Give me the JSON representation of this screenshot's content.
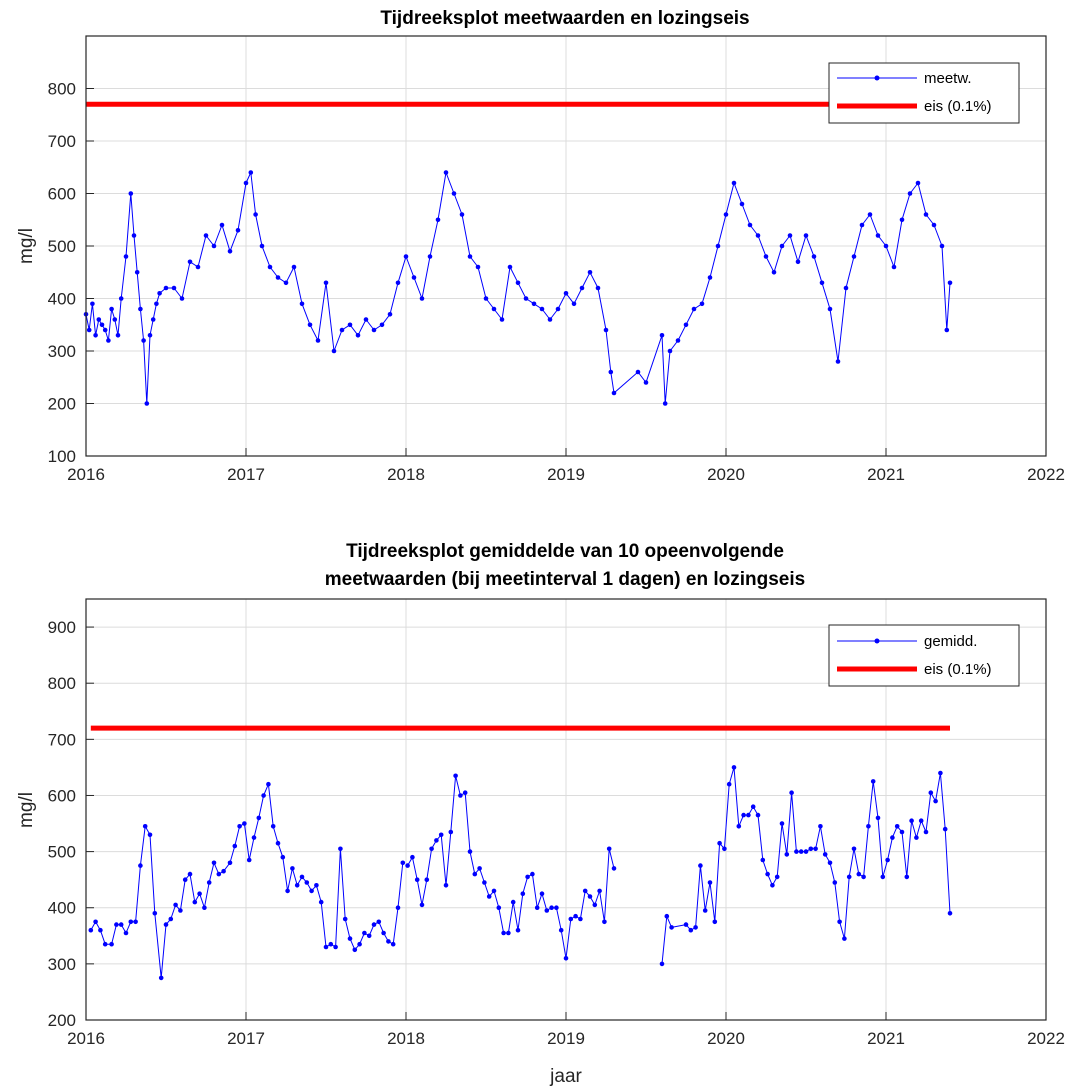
{
  "chart_data": [
    {
      "type": "line",
      "title": "Tijdreeksplot meetwaarden en lozingseis",
      "xlabel": "",
      "ylabel": "mg/l",
      "xlim": [
        2016,
        2022
      ],
      "ylim": [
        100,
        900
      ],
      "xticks": [
        "2016",
        "2017",
        "2018",
        "2019",
        "2020",
        "2021",
        "2022"
      ],
      "yticks": [
        "100",
        "200",
        "300",
        "400",
        "500",
        "600",
        "700",
        "800"
      ],
      "grid": true,
      "legend_position": "top-right",
      "series": [
        {
          "name": "meetw.",
          "color": "#0000ff",
          "marker": "dot",
          "x": [
            2016.0,
            2016.02,
            2016.04,
            2016.06,
            2016.08,
            2016.1,
            2016.12,
            2016.14,
            2016.16,
            2016.18,
            2016.2,
            2016.22,
            2016.25,
            2016.28,
            2016.3,
            2016.32,
            2016.34,
            2016.36,
            2016.38,
            2016.4,
            2016.42,
            2016.44,
            2016.46,
            2016.5,
            2016.55,
            2016.6,
            2016.65,
            2016.7,
            2016.75,
            2016.8,
            2016.85,
            2016.9,
            2016.95,
            2017.0,
            2017.03,
            2017.06,
            2017.1,
            2017.15,
            2017.2,
            2017.25,
            2017.3,
            2017.35,
            2017.4,
            2017.45,
            2017.5,
            2017.55,
            2017.6,
            2017.65,
            2017.7,
            2017.75,
            2017.8,
            2017.85,
            2017.9,
            2017.95,
            2018.0,
            2018.05,
            2018.1,
            2018.15,
            2018.2,
            2018.25,
            2018.3,
            2018.35,
            2018.4,
            2018.45,
            2018.5,
            2018.55,
            2018.6,
            2018.65,
            2018.7,
            2018.75,
            2018.8,
            2018.85,
            2018.9,
            2018.95,
            2019.0,
            2019.05,
            2019.1,
            2019.15,
            2019.2,
            2019.25,
            2019.28,
            2019.3,
            2019.45,
            2019.5,
            2019.6,
            2019.62,
            2019.65,
            2019.7,
            2019.75,
            2019.8,
            2019.85,
            2019.9,
            2019.95,
            2020.0,
            2020.05,
            2020.1,
            2020.15,
            2020.2,
            2020.25,
            2020.3,
            2020.35,
            2020.4,
            2020.45,
            2020.5,
            2020.55,
            2020.6,
            2020.65,
            2020.7,
            2020.75,
            2020.8,
            2020.85,
            2020.9,
            2020.95,
            2021.0,
            2021.05,
            2021.1,
            2021.15,
            2021.2,
            2021.25,
            2021.3,
            2021.35,
            2021.38,
            2021.4
          ],
          "y": [
            370,
            340,
            390,
            330,
            360,
            350,
            340,
            320,
            380,
            360,
            330,
            400,
            480,
            600,
            520,
            450,
            380,
            320,
            200,
            330,
            360,
            390,
            410,
            420,
            420,
            400,
            470,
            460,
            520,
            500,
            540,
            490,
            530,
            620,
            640,
            560,
            500,
            460,
            440,
            430,
            460,
            390,
            350,
            320,
            430,
            300,
            340,
            350,
            330,
            360,
            340,
            350,
            370,
            430,
            480,
            440,
            400,
            480,
            550,
            640,
            600,
            560,
            480,
            460,
            400,
            380,
            360,
            460,
            430,
            400,
            390,
            380,
            360,
            380,
            410,
            390,
            420,
            450,
            420,
            340,
            260,
            220,
            260,
            240,
            330,
            200,
            300,
            320,
            350,
            380,
            390,
            440,
            500,
            560,
            620,
            580,
            540,
            520,
            480,
            450,
            500,
            520,
            470,
            520,
            480,
            430,
            380,
            280,
            420,
            480,
            540,
            560,
            520,
            500,
            460,
            550,
            600,
            620,
            560,
            540,
            500,
            340,
            430
          ]
        },
        {
          "name": "eis (0.1%)",
          "color": "#ff0000",
          "x": [
            2016,
            2021.4
          ],
          "y": [
            770,
            770
          ]
        }
      ]
    },
    {
      "type": "line",
      "title": "Tijdreeksplot gemiddelde van 10 opeenvolgende meetwaarden (bij meetinterval 1 dagen) en lozingseis",
      "title_lines": [
        "Tijdreeksplot gemiddelde van 10 opeenvolgende",
        "meetwaarden (bij meetinterval 1 dagen) en lozingseis"
      ],
      "xlabel": "jaar",
      "ylabel": "mg/l",
      "xlim": [
        2016,
        2022
      ],
      "ylim": [
        200,
        950
      ],
      "xticks": [
        "2016",
        "2017",
        "2018",
        "2019",
        "2020",
        "2021",
        "2022"
      ],
      "yticks": [
        "200",
        "300",
        "400",
        "500",
        "600",
        "700",
        "800",
        "900"
      ],
      "grid": true,
      "legend_position": "top-right",
      "series": [
        {
          "name": "gemidd.",
          "color": "#0000ff",
          "marker": "dot",
          "segments": [
            {
              "x": [
                2016.03,
                2016.06,
                2016.09,
                2016.12,
                2016.16,
                2016.19,
                2016.22,
                2016.25,
                2016.28,
                2016.31,
                2016.34,
                2016.37,
                2016.4,
                2016.43,
                2016.47,
                2016.5,
                2016.53,
                2016.56,
                2016.59,
                2016.62,
                2016.65,
                2016.68,
                2016.71,
                2016.74,
                2016.77,
                2016.8,
                2016.83,
                2016.86,
                2016.9,
                2016.93,
                2016.96,
                2016.99,
                2017.02,
                2017.05,
                2017.08,
                2017.11,
                2017.14,
                2017.17,
                2017.2,
                2017.23,
                2017.26,
                2017.29,
                2017.32,
                2017.35,
                2017.38,
                2017.41,
                2017.44,
                2017.47,
                2017.5,
                2017.53,
                2017.56,
                2017.59,
                2017.62,
                2017.65,
                2017.68,
                2017.71,
                2017.74,
                2017.77,
                2017.8,
                2017.83,
                2017.86,
                2017.89,
                2017.92,
                2017.95,
                2017.98
              ],
              "y": [
                360,
                375,
                360,
                335,
                335,
                370,
                370,
                355,
                375,
                375,
                475,
                545,
                530,
                390,
                275,
                370,
                380,
                405,
                395,
                450,
                460,
                410,
                425,
                400,
                445,
                480,
                460,
                465,
                480,
                510,
                545,
                550,
                485,
                525,
                560,
                600,
                620,
                545,
                515,
                490,
                430,
                470,
                440,
                455,
                445,
                430,
                440,
                410,
                330,
                335,
                330,
                505,
                380,
                345,
                325,
                335,
                355,
                350,
                370,
                375,
                355,
                340,
                335,
                400,
                480
              ]
            },
            {
              "x": [
                2018.01,
                2018.04,
                2018.07,
                2018.1,
                2018.13,
                2018.16,
                2018.19,
                2018.22,
                2018.25,
                2018.28,
                2018.31,
                2018.34,
                2018.37,
                2018.4,
                2018.43,
                2018.46,
                2018.49,
                2018.52,
                2018.55,
                2018.58,
                2018.61,
                2018.64,
                2018.67,
                2018.7,
                2018.73,
                2018.76,
                2018.79,
                2018.82,
                2018.85,
                2018.88,
                2018.91,
                2018.94,
                2018.97,
                2019.0,
                2019.03,
                2019.06,
                2019.09,
                2019.12,
                2019.15,
                2019.18,
                2019.21,
                2019.24,
                2019.27,
                2019.3
              ],
              "y": [
                475,
                490,
                450,
                405,
                450,
                505,
                520,
                530,
                440,
                535,
                635,
                600,
                605,
                500,
                460,
                470,
                445,
                420,
                430,
                400,
                355,
                355,
                410,
                360,
                425,
                455,
                460,
                400,
                425,
                395,
                400,
                400,
                360,
                310,
                380,
                385,
                380,
                430,
                420,
                405,
                430,
                375,
                505,
                470
              ]
            },
            {
              "x": [
                2019.6,
                2019.63,
                2019.66,
                2019.75,
                2019.78,
                2019.81,
                2019.84,
                2019.87,
                2019.9,
                2019.93,
                2019.96,
                2019.99,
                2020.02,
                2020.05,
                2020.08,
                2020.11,
                2020.14,
                2020.17,
                2020.2,
                2020.23,
                2020.26,
                2020.29,
                2020.32,
                2020.35,
                2020.38,
                2020.41,
                2020.44,
                2020.47,
                2020.5,
                2020.53,
                2020.56,
                2020.59,
                2020.62,
                2020.65,
                2020.68,
                2020.71,
                2020.74,
                2020.77,
                2020.8,
                2020.83,
                2020.86,
                2020.89,
                2020.92,
                2020.95,
                2020.98,
                2021.01,
                2021.04,
                2021.07,
                2021.1,
                2021.13,
                2021.16,
                2021.19,
                2021.22,
                2021.25,
                2021.28,
                2021.31,
                2021.34,
                2021.37,
                2021.4
              ],
              "y": [
                300,
                385,
                365,
                370,
                360,
                365,
                475,
                395,
                445,
                375,
                515,
                505,
                620,
                650,
                545,
                565,
                565,
                580,
                565,
                485,
                460,
                440,
                455,
                550,
                495,
                605,
                500,
                500,
                500,
                505,
                505,
                545,
                495,
                480,
                445,
                375,
                345,
                455,
                505,
                460,
                455,
                545,
                625,
                560,
                455,
                485,
                525,
                545,
                535,
                455,
                555,
                525,
                555,
                535,
                605,
                590,
                640,
                540,
                390
              ]
            }
          ]
        },
        {
          "name": "eis (0.1%)",
          "color": "#ff0000",
          "x": [
            2016.03,
            2021.4
          ],
          "y": [
            720,
            720
          ]
        }
      ]
    }
  ]
}
